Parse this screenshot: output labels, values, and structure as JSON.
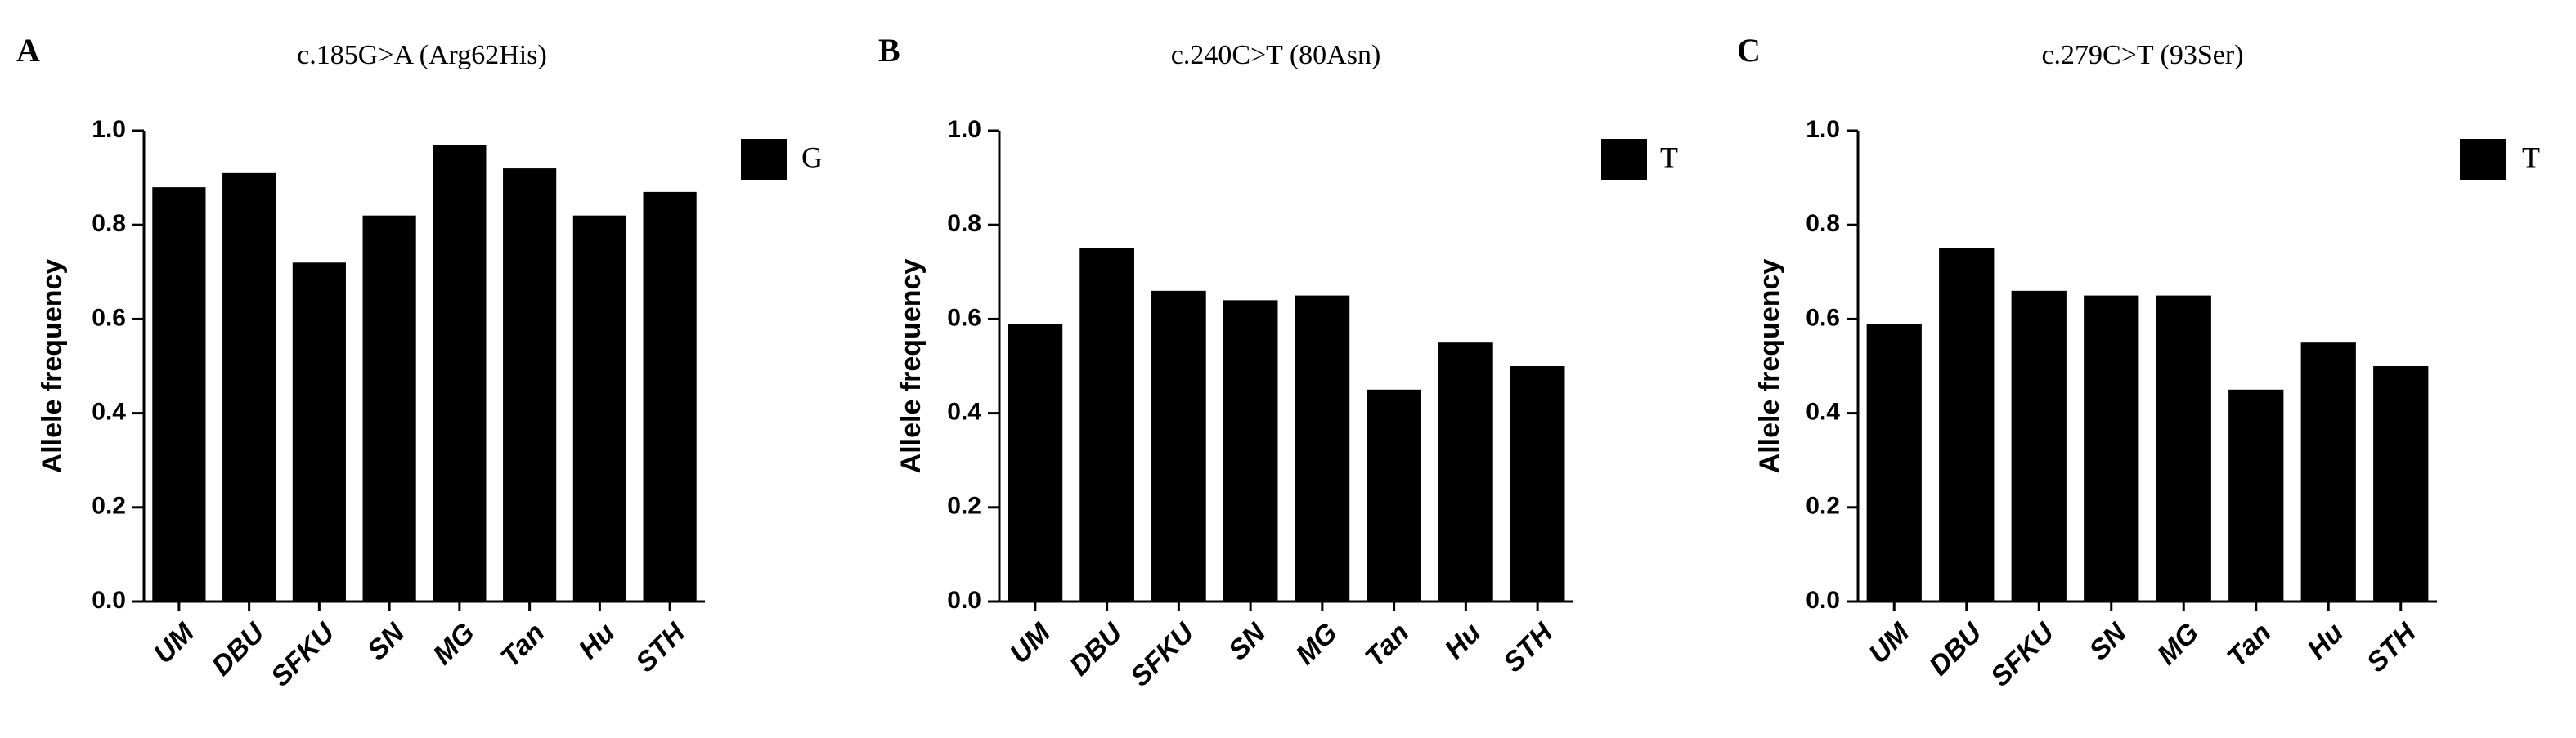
{
  "chart_data": [
    {
      "type": "bar",
      "panel": "A",
      "title": "c.185G>A (Arg62His)",
      "y_label": "Allele frequency",
      "categories": [
        "UM",
        "DBU",
        "SFKU",
        "SN",
        "MG",
        "Tan",
        "Hu",
        "STH"
      ],
      "series": [
        {
          "name": "G",
          "color": "#000000",
          "values": [
            0.88,
            0.91,
            0.72,
            0.82,
            0.97,
            0.92,
            0.82,
            0.87
          ]
        }
      ],
      "ylim": [
        0,
        1
      ],
      "yticks": [
        {
          "value": 0,
          "label": "0.0"
        },
        0.2,
        0.4,
        0.6,
        0.8,
        {
          "value": 1,
          "label": "1.0"
        }
      ]
    },
    {
      "type": "bar",
      "panel": "B",
      "title": "c.240C>T (80Asn)",
      "y_label": "Allele frequency",
      "categories": [
        "UM",
        "DBU",
        "SFKU",
        "SN",
        "MG",
        "Tan",
        "Hu",
        "STH"
      ],
      "series": [
        {
          "name": "T",
          "color": "#000000",
          "values": [
            0.59,
            0.75,
            0.66,
            0.64,
            0.65,
            0.45,
            0.55,
            0.5
          ]
        }
      ],
      "ylim": [
        0,
        1
      ],
      "yticks": [
        {
          "value": 0,
          "label": "0.0"
        },
        0.2,
        0.4,
        0.6,
        0.8,
        {
          "value": 1,
          "label": "1.0"
        }
      ]
    },
    {
      "type": "bar",
      "panel": "C",
      "title": "c.279C>T (93Ser)",
      "y_label": "Allele frequency",
      "categories": [
        "UM",
        "DBU",
        "SFKU",
        "SN",
        "MG",
        "Tan",
        "Hu",
        "STH"
      ],
      "series": [
        {
          "name": "T",
          "color": "#000000",
          "values": [
            0.59,
            0.75,
            0.66,
            0.65,
            0.65,
            0.45,
            0.55,
            0.5
          ]
        }
      ],
      "ylim": [
        0,
        1
      ],
      "yticks": [
        {
          "value": 0,
          "label": "0.0"
        },
        0.2,
        0.4,
        0.6,
        0.8,
        {
          "value": 1,
          "label": "1.0"
        }
      ]
    }
  ]
}
